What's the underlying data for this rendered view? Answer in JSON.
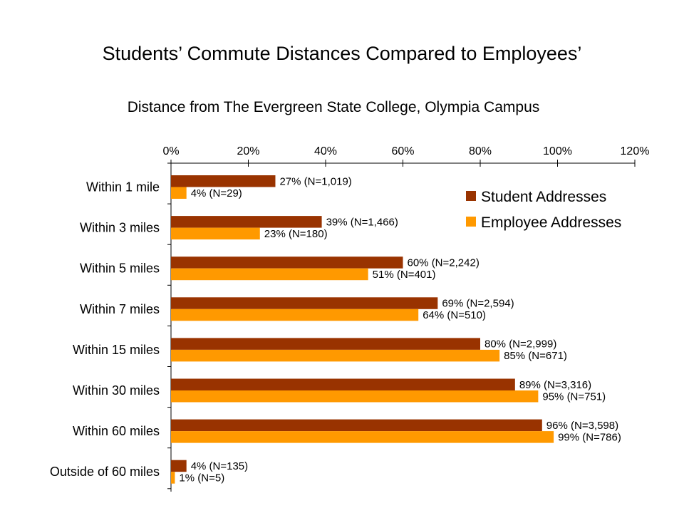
{
  "slide_title": "Students’ Commute Distances Compared to Employees’",
  "colors": {
    "student": "#993300",
    "employee": "#FF9900"
  },
  "chart_data": {
    "type": "bar",
    "orientation": "horizontal",
    "title": "Distance from The Evergreen State College, Olympia Campus",
    "categories": [
      "Within 1 mile",
      "Within 3 miles",
      "Within 5 miles",
      "Within 7 miles",
      "Within 15 miles",
      "Within 30 miles",
      "Within 60 miles",
      "Outside of 60 miles"
    ],
    "series": [
      {
        "name": "Student Addresses",
        "values": [
          27,
          39,
          60,
          69,
          80,
          89,
          96,
          4
        ],
        "labels": [
          "27% (N=1,019)",
          "39% (N=1,466)",
          "60% (N=2,242)",
          "69% (N=2,594)",
          "80% (N=2,999)",
          "89% (N=3,316)",
          "96% (N=3,598)",
          "4% (N=135)"
        ]
      },
      {
        "name": "Employee Addresses",
        "values": [
          4,
          23,
          51,
          64,
          85,
          95,
          99,
          1
        ],
        "labels": [
          "4% (N=29)",
          "23% (N=180)",
          "51% (N=401)",
          "64% (N=510)",
          "85% (N=671)",
          "95% (N=751)",
          "99% (N=786)",
          "1% (N=5)"
        ]
      }
    ],
    "xlim": [
      0,
      120
    ],
    "xticks": [
      0,
      20,
      40,
      60,
      80,
      100,
      120
    ],
    "xtick_labels": [
      "0%",
      "20%",
      "40%",
      "60%",
      "80%",
      "100%",
      "120%"
    ],
    "x_axis_position": "top",
    "grid": false,
    "legend": "right"
  }
}
